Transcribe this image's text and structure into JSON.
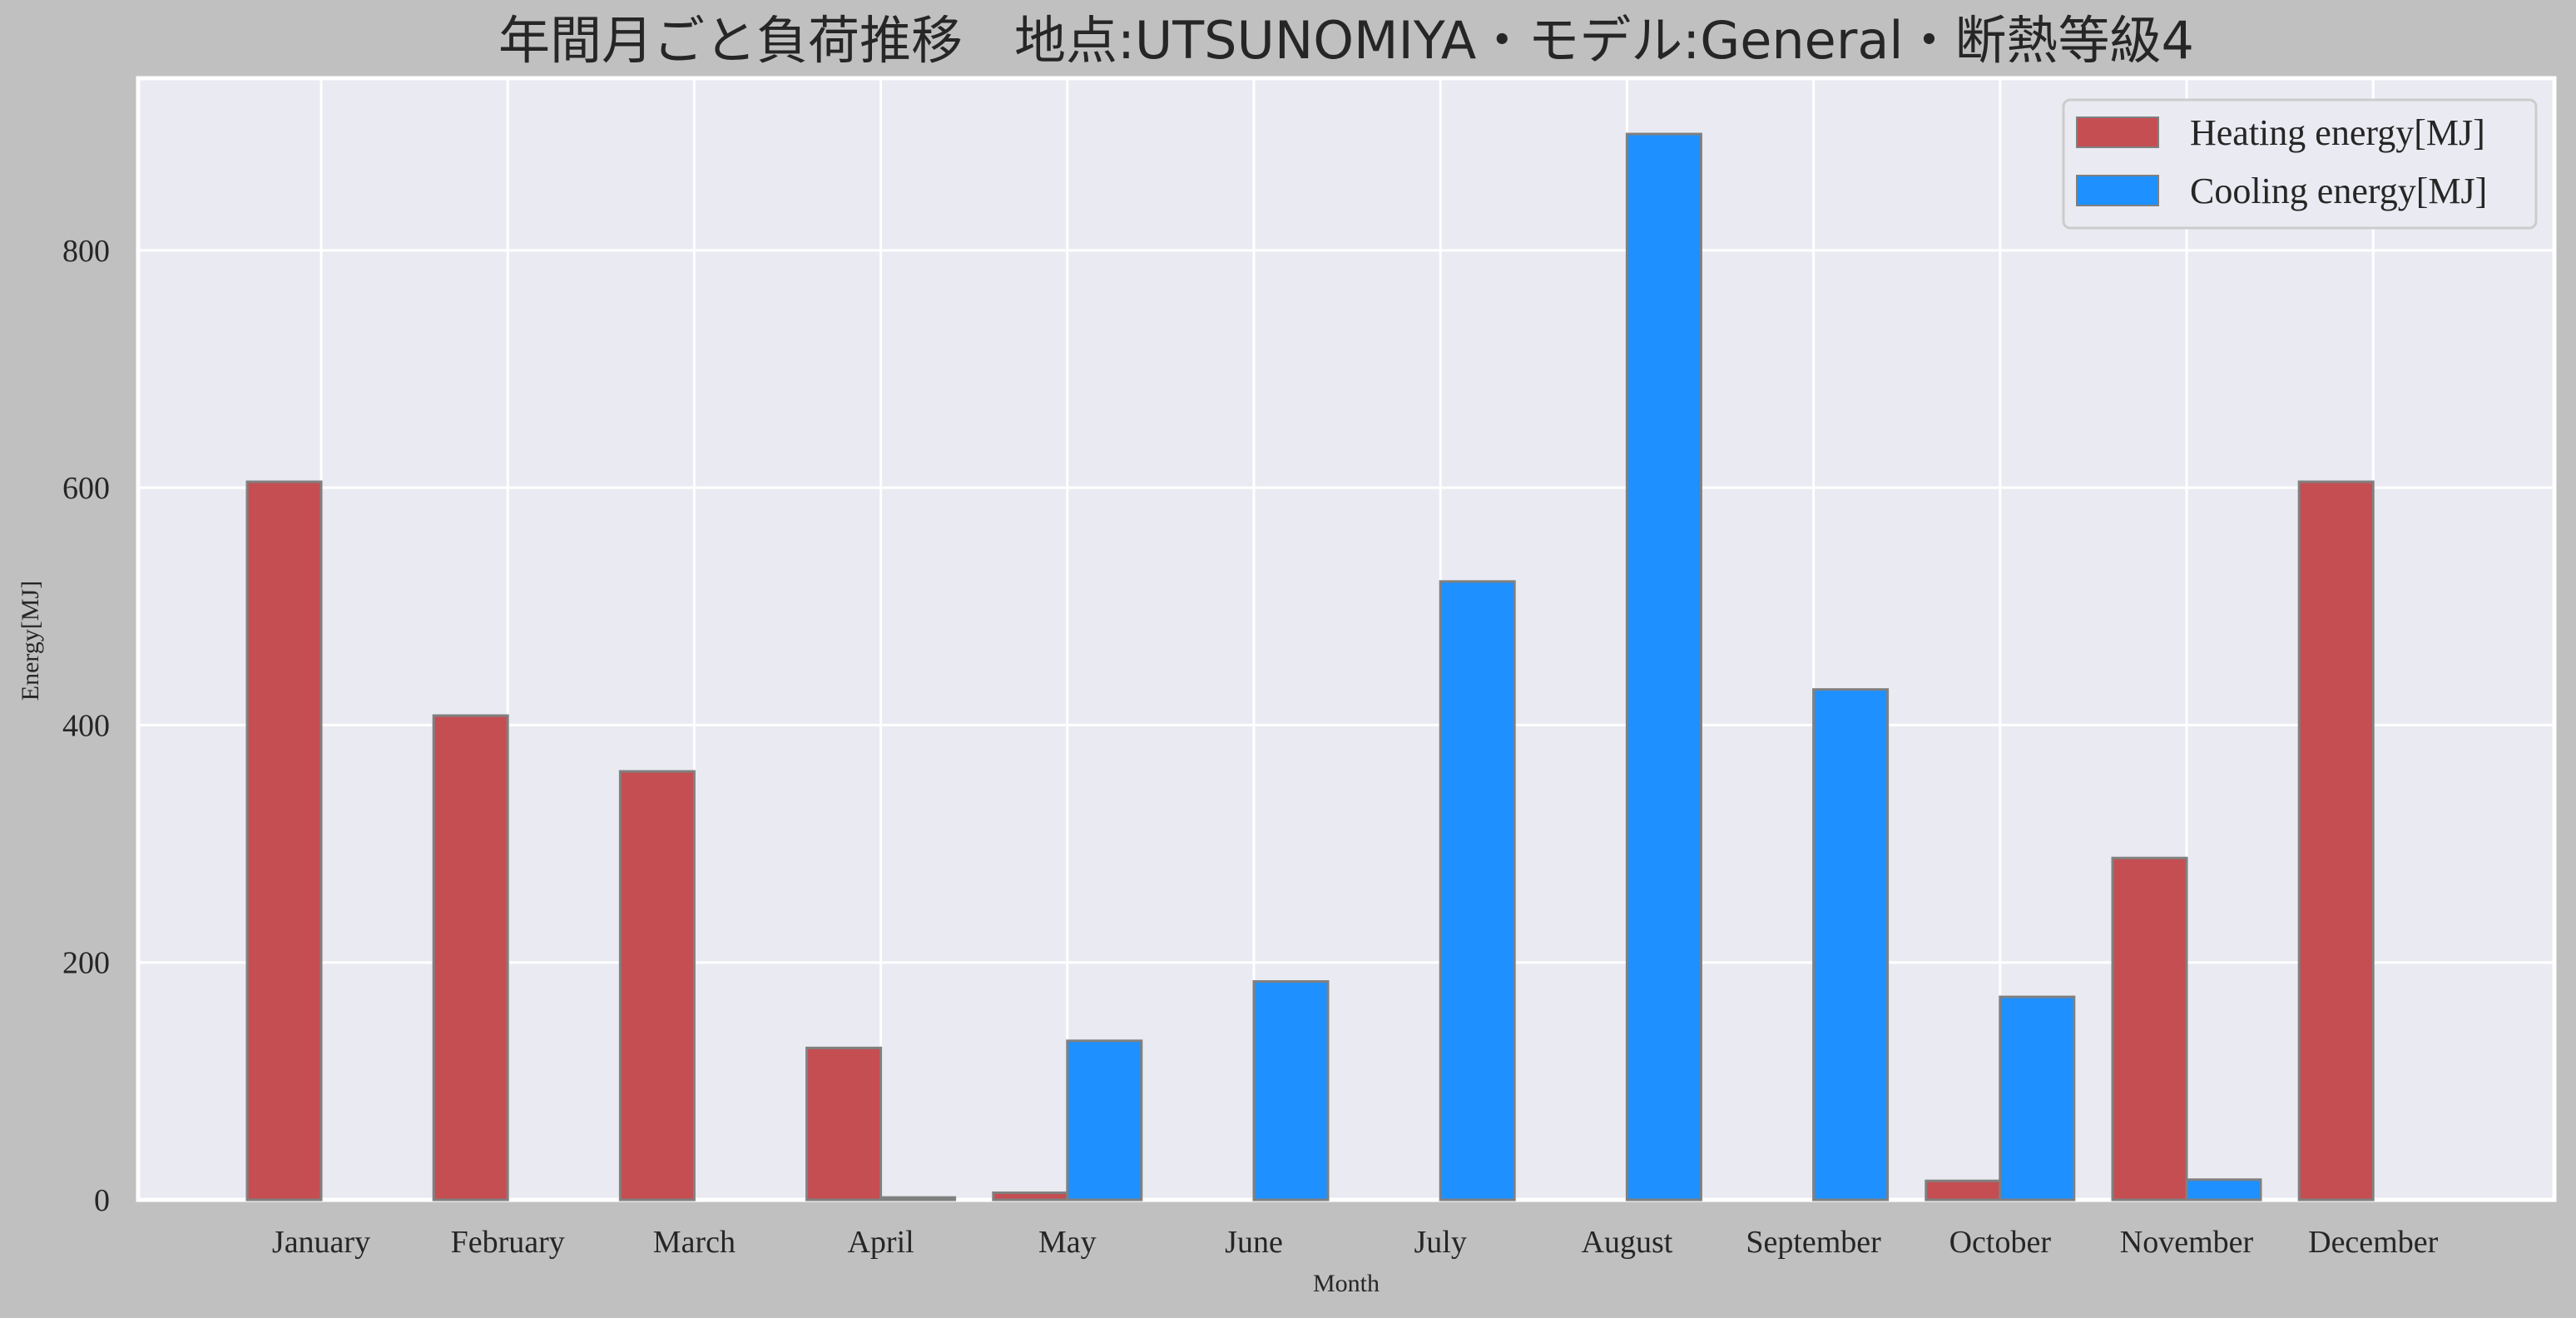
{
  "chart_data": {
    "type": "bar",
    "title": "年間月ごと負荷推移　地点:UTSUNOMIYA・モデル:General・断熱等級4",
    "xlabel": "Month",
    "ylabel": "Energy[MJ]",
    "ylim": [
      0,
      945
    ],
    "yticks": [
      0,
      200,
      400,
      600,
      800
    ],
    "grid": true,
    "legend_position": "top-right",
    "categories": [
      "January",
      "February",
      "March",
      "April",
      "May",
      "June",
      "July",
      "August",
      "September",
      "October",
      "November",
      "December"
    ],
    "series": [
      {
        "name": "Heating energy[MJ]",
        "color": "#c44e52",
        "values": [
          605,
          408,
          361,
          128,
          6,
          0,
          0,
          0,
          0,
          16,
          288,
          605
        ]
      },
      {
        "name": "Cooling energy[MJ]",
        "color": "#1e90ff",
        "values": [
          0,
          0,
          0,
          2,
          134,
          184,
          521,
          898,
          430,
          171,
          17,
          0
        ]
      }
    ]
  }
}
